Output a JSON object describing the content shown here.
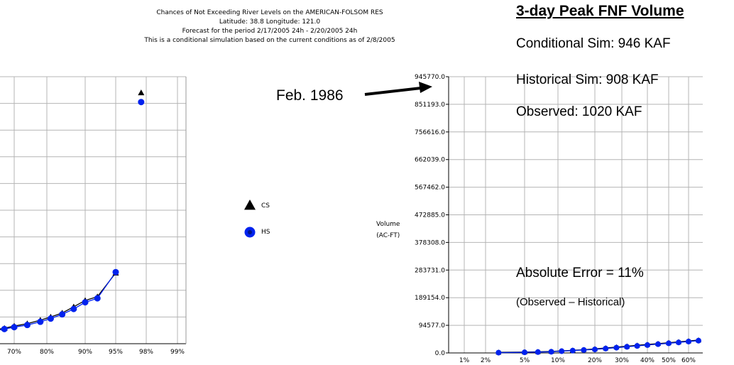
{
  "header": {
    "line1": "Chances of Not Exceeding River Levels on the AMERICAN-FOLSOM RES",
    "line2": "Latitude: 38.8    Longitude: 121.0",
    "line3": "Forecast for the period 2/17/2005 24h - 2/20/2005 24h",
    "line4": "This is a conditional simulation based on the current conditions as of 2/8/2005"
  },
  "callout": {
    "title": "3-day Peak FNF Volume",
    "conditional": "Conditional Sim: 946 KAF",
    "historical": "Historical Sim: 908 KAF",
    "observed": "Observed: 1020 KAF",
    "abs_error": "Absolute Error = 11%",
    "abs_error_note": "(Observed – Historical)"
  },
  "annotation": {
    "feb": "Feb. 1986"
  },
  "legend": {
    "cs": "CS",
    "hs": "HS"
  },
  "ylabel": {
    "line1": "Volume",
    "line2": "(AC-FT)"
  },
  "colors": {
    "cs": "#000000",
    "hs": "#0022ee",
    "grid": "#b4b4b4"
  },
  "chart_data": [
    {
      "type": "scatter",
      "title": "",
      "xlabel": "",
      "ylabel": "",
      "x_ticks": [
        "70%",
        "80%",
        "90%",
        "95%",
        "98%",
        "99%"
      ],
      "grid": true,
      "series": [
        {
          "name": "CS",
          "marker": "triangle",
          "x": [
            62,
            64,
            67,
            70,
            74,
            78,
            81,
            84,
            87,
            90,
            92,
            95,
            97.5
          ],
          "y": [
            48,
            52,
            58,
            66,
            75,
            88,
            100,
            115,
            138,
            162,
            176,
            265,
            940
          ]
        },
        {
          "name": "HS",
          "marker": "circle",
          "x": [
            62,
            64,
            67,
            70,
            74,
            78,
            81,
            84,
            87,
            90,
            92,
            95,
            97.5
          ],
          "y": [
            44,
            48,
            55,
            62,
            70,
            82,
            94,
            110,
            130,
            155,
            170,
            268,
            905
          ]
        }
      ]
    },
    {
      "type": "scatter",
      "title": "",
      "xlabel": "",
      "ylabel": "Volume (AC-FT)",
      "ylim": [
        0,
        945770
      ],
      "y_ticks": [
        "0.0",
        "94577.0",
        "189154.0",
        "283731.0",
        "378308.0",
        "472885.0",
        "567462.0",
        "662039.0",
        "756616.0",
        "851193.0",
        "945770.0"
      ],
      "x_ticks": [
        "1%",
        "2%",
        "5%",
        "10%",
        "20%",
        "30%",
        "40%",
        "50%",
        "60%"
      ],
      "grid": true,
      "series": [
        {
          "name": "CS",
          "marker": "triangle",
          "x": [
            3,
            5,
            7,
            9,
            11,
            14,
            17,
            20,
            24,
            28,
            32,
            36,
            40,
            45,
            50,
            55,
            60,
            65
          ],
          "y": [
            2000,
            3000,
            4000,
            5000,
            7000,
            9000,
            11000,
            14000,
            17000,
            20000,
            23000,
            26000,
            29000,
            32000,
            35000,
            38000,
            41000,
            44000
          ]
        },
        {
          "name": "HS",
          "marker": "circle",
          "x": [
            3,
            5,
            7,
            9,
            11,
            14,
            17,
            20,
            24,
            28,
            32,
            36,
            40,
            45,
            50,
            55,
            60,
            65
          ],
          "y": [
            1000,
            2000,
            3000,
            4000,
            6000,
            8000,
            10000,
            12000,
            15000,
            18000,
            21000,
            24000,
            27000,
            30000,
            33000,
            36000,
            39000,
            42000
          ]
        }
      ]
    }
  ]
}
